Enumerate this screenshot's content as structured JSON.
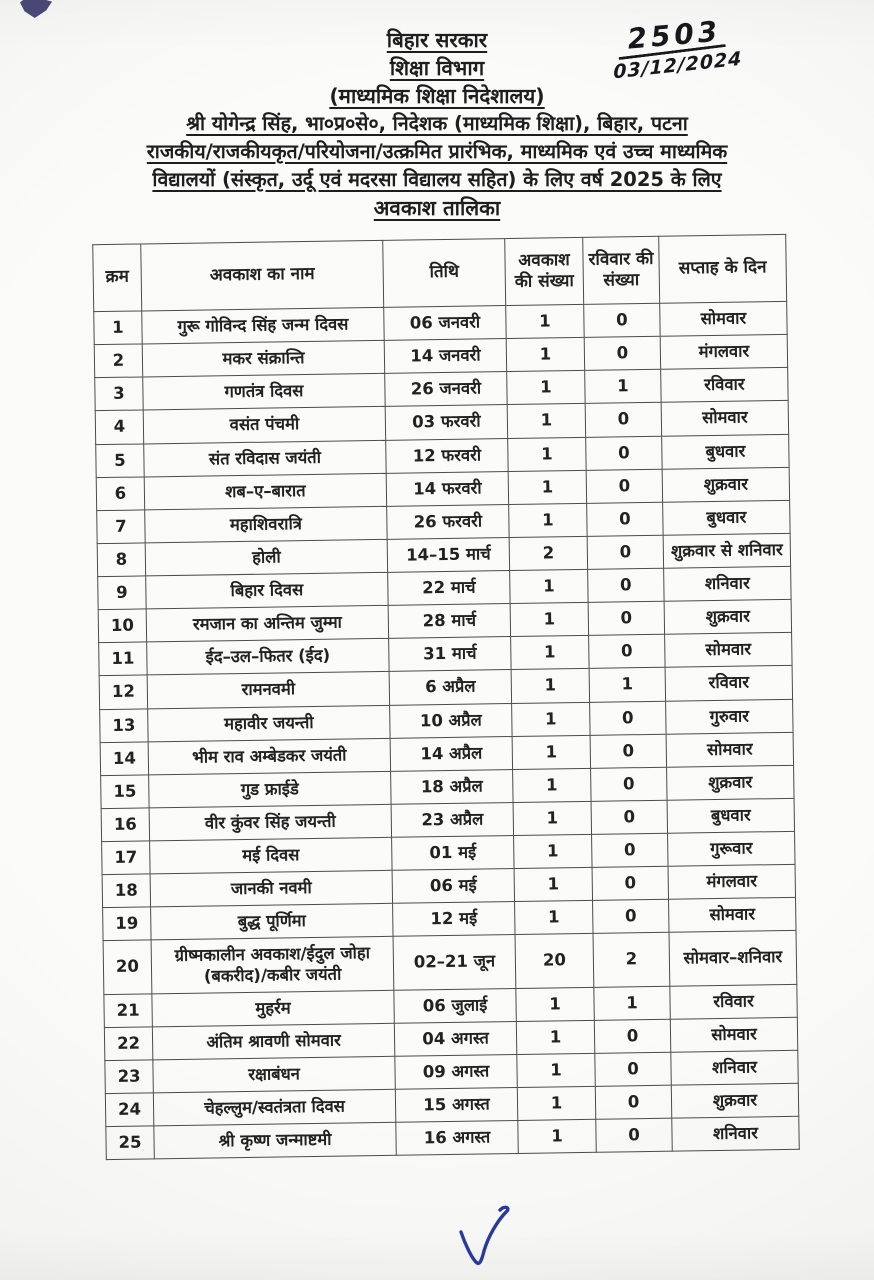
{
  "document": {
    "stamp_number": "2503",
    "stamp_date": "03/12/2024",
    "header_lines": [
      "बिहार सरकार",
      "शिक्षा विभाग",
      "(माध्यमिक शिक्षा निदेशालय)",
      "श्री योगेन्द्र सिंह, भा०प्र०से०, निदेशक (माध्यमिक शिक्षा), बिहार, पटना",
      "राजकीय/राजकीयकृत/परियोजना/उत्क्रमित प्रारंभिक, माध्यमिक एवं उच्च माध्यमिक",
      "विद्यालयों (संस्कृत, उर्दू एवं मदरसा विद्यालय सहित) के लिए वर्ष 2025 के लिए",
      "अवकाश तालिका"
    ]
  },
  "table": {
    "headers": [
      "क्रम",
      "अवकाश का नाम",
      "तिथि",
      "अवकाश की संख्या",
      "रविवार की संख्या",
      "सप्ताह के दिन"
    ],
    "rows": [
      [
        "1",
        "गुरू गोविन्द सिंह जन्म दिवस",
        "06 जनवरी",
        "1",
        "0",
        "सोमवार"
      ],
      [
        "2",
        "मकर संक्रान्ति",
        "14 जनवरी",
        "1",
        "0",
        "मंगलवार"
      ],
      [
        "3",
        "गणतंत्र दिवस",
        "26 जनवरी",
        "1",
        "1",
        "रविवार"
      ],
      [
        "4",
        "वसंत पंचमी",
        "03 फरवरी",
        "1",
        "0",
        "सोमवार"
      ],
      [
        "5",
        "संत रविदास जयंती",
        "12 फरवरी",
        "1",
        "0",
        "बुधवार"
      ],
      [
        "6",
        "शब–ए–बारात",
        "14 फरवरी",
        "1",
        "0",
        "शुक्रवार"
      ],
      [
        "7",
        "महाशिवरात्रि",
        "26 फरवरी",
        "1",
        "0",
        "बुधवार"
      ],
      [
        "8",
        "होली",
        "14–15 मार्च",
        "2",
        "0",
        "शुक्रवार से शनिवार"
      ],
      [
        "9",
        "बिहार दिवस",
        "22 मार्च",
        "1",
        "0",
        "शनिवार"
      ],
      [
        "10",
        "रमजान का अन्तिम जुम्मा",
        "28 मार्च",
        "1",
        "0",
        "शुक्रवार"
      ],
      [
        "11",
        "ईद–उल–फितर (ईद)",
        "31 मार्च",
        "1",
        "0",
        "सोमवार"
      ],
      [
        "12",
        "रामनवमी",
        "6 अप्रैल",
        "1",
        "1",
        "रविवार"
      ],
      [
        "13",
        "महावीर जयन्ती",
        "10 अप्रैल",
        "1",
        "0",
        "गुरुवार"
      ],
      [
        "14",
        "भीम राव अम्बेडकर जयंती",
        "14 अप्रैल",
        "1",
        "0",
        "सोमवार"
      ],
      [
        "15",
        "गुड फ्राईडे",
        "18 अप्रैल",
        "1",
        "0",
        "शुक्रवार"
      ],
      [
        "16",
        "वीर कुंवर सिंह जयन्ती",
        "23 अप्रैल",
        "1",
        "0",
        "बुधवार"
      ],
      [
        "17",
        "मई दिवस",
        "01 मई",
        "1",
        "0",
        "गुरूवार"
      ],
      [
        "18",
        "जानकी नवमी",
        "06 मई",
        "1",
        "0",
        "मंगलवार"
      ],
      [
        "19",
        "बुद्ध पूर्णिमा",
        "12 मई",
        "1",
        "0",
        "सोमवार"
      ],
      [
        "20",
        "ग्रीष्मकालीन अवकाश/ईदुल जोहा (बकरीद)/कबीर जयंती",
        "02–21 जून",
        "20",
        "2",
        "सोमवार–शनिवार"
      ],
      [
        "21",
        "मुहर्रम",
        "06 जुलाई",
        "1",
        "1",
        "रविवार"
      ],
      [
        "22",
        "अंतिम श्रावणी सोमवार",
        "04 अगस्त",
        "1",
        "0",
        "सोमवार"
      ],
      [
        "23",
        "रक्षाबंधन",
        "09 अगस्त",
        "1",
        "0",
        "शनिवार"
      ],
      [
        "24",
        "चेहल्लुम/स्वतंत्रता दिवस",
        "15 अगस्त",
        "1",
        "0",
        "शुक्रवार"
      ],
      [
        "25",
        "श्री कृष्ण जन्माष्टमी",
        "16 अगस्त",
        "1",
        "0",
        "शनिवार"
      ]
    ],
    "cell_names": [
      "serial-cell",
      "holiday-name-cell",
      "date-cell",
      "holiday-count-cell",
      "sunday-count-cell",
      "weekday-cell"
    ]
  },
  "marks": {
    "checkmark_icon": "blue-pen-checkmark",
    "ink_blob_icon": "dark-ink-blob",
    "check_ink_color": "#2b3aa0",
    "pen_ink_color": "#17171c"
  }
}
